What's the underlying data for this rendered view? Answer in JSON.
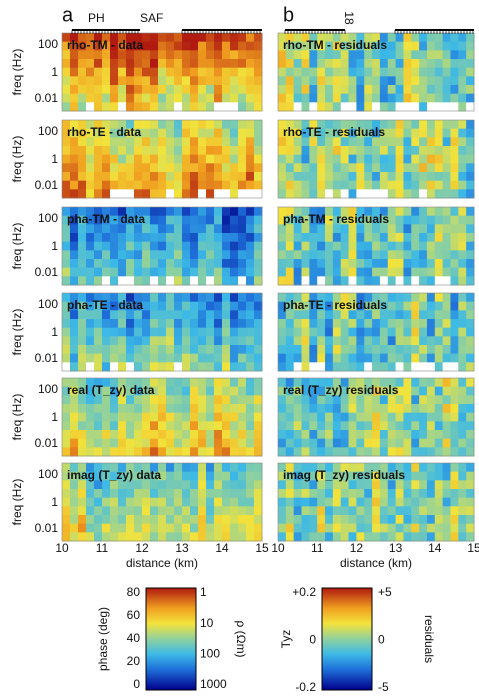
{
  "panel_labels": [
    "a",
    "b"
  ],
  "annotations": {
    "ph": "PH",
    "saf": "SAF",
    "station": "18"
  },
  "panels": [
    {
      "title": "rho-TM - data"
    },
    {
      "title": "rho-TM - residuals"
    },
    {
      "title": "rho-TE - data"
    },
    {
      "title": "rho-TE - residuals"
    },
    {
      "title": "pha-TM - data"
    },
    {
      "title": "pha-TM - residuals"
    },
    {
      "title": "pha-TE - data"
    },
    {
      "title": "pha-TE - residuals"
    },
    {
      "title": "real (T_zy) data"
    },
    {
      "title": "real (T_zy) residuals"
    },
    {
      "title": "imag (T_zy) data"
    },
    {
      "title": "imag (T_zy) residuals"
    }
  ],
  "y_axis": {
    "label": "freq (Hz)",
    "ticks": [
      "100",
      "1",
      "0.01"
    ]
  },
  "x_axis": {
    "label": "distance (km)",
    "ticks": [
      "10",
      "11",
      "12",
      "13",
      "14",
      "15"
    ]
  },
  "colorbar_left": {
    "left_label": "phase (deg)",
    "left_ticks": [
      "80",
      "60",
      "40",
      "20",
      "0"
    ],
    "right_label": "ρ (Ωm)",
    "right_ticks": [
      "1",
      "10",
      "100",
      "1000"
    ]
  },
  "colorbar_right": {
    "left_label": "Tyz",
    "left_ticks": [
      "+0.2",
      "0",
      "-0.2"
    ],
    "right_label": "residuals",
    "right_ticks": [
      "+5",
      "0",
      "-5"
    ]
  }
}
